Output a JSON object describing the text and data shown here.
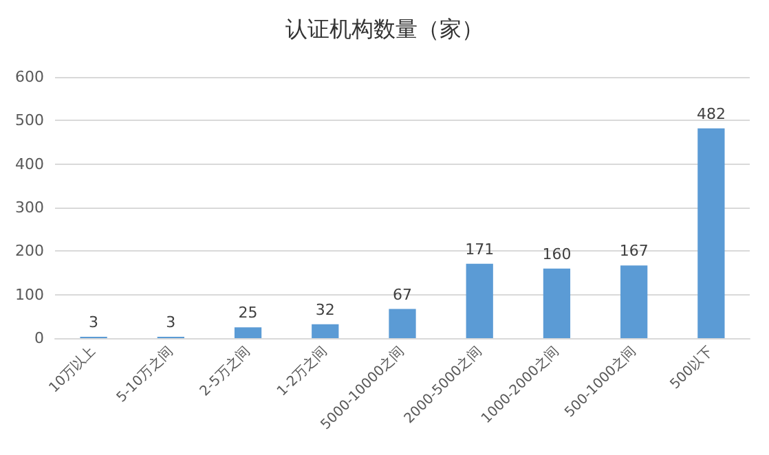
{
  "chart_data": {
    "type": "bar",
    "title": "认证机构数量（家）",
    "categories": [
      "10万以上",
      "5-10万之间",
      "2-5万之间",
      "1-2万之间",
      "5000-10000之间",
      "2000-5000之间",
      "1000-2000之间",
      "500-1000之间",
      "500以下"
    ],
    "values": [
      3,
      3,
      25,
      32,
      67,
      171,
      160,
      167,
      482
    ],
    "color": "#5b9bd5",
    "ylim": [
      0,
      600
    ],
    "yticks": [
      0,
      100,
      200,
      300,
      400,
      500,
      600
    ],
    "grid": "y",
    "data_labels": true
  }
}
